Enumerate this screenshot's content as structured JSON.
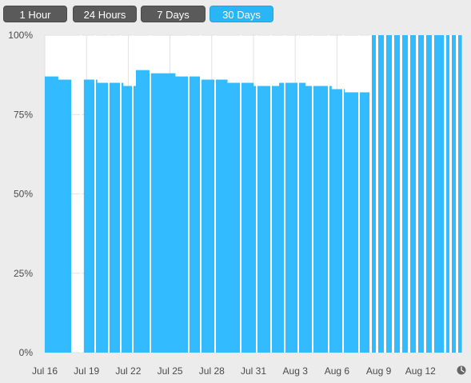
{
  "tabs": [
    {
      "label": "1 Hour",
      "selected": false
    },
    {
      "label": "24 Hours",
      "selected": false
    },
    {
      "label": "7 Days",
      "selected": false
    },
    {
      "label": "30 Days",
      "selected": true
    }
  ],
  "clock_icon": "clock-icon",
  "colors": {
    "bar": "#33bbff",
    "tab_selected": "#2ab5f6",
    "tab": "#5a5a5a",
    "grid": "#e2e2e2"
  },
  "chart_data": {
    "type": "area",
    "title": "",
    "xlabel": "",
    "ylabel": "",
    "ylim": [
      0,
      100
    ],
    "y_ticks": [
      "0%",
      "25%",
      "50%",
      "75%",
      "100%"
    ],
    "x_ticks": [
      "Jul 16",
      "Jul 19",
      "Jul 22",
      "Jul 25",
      "Jul 28",
      "Jul 31",
      "Aug 3",
      "Aug 6",
      "Aug 9",
      "Aug 12"
    ],
    "grid": true,
    "series": [
      {
        "values": [
          {
            "x": "Jul 16",
            "y": 87
          },
          {
            "x": "Jul 17",
            "y": 86
          },
          {
            "x": "Jul 18",
            "y": 0
          },
          {
            "x": "Jul 19",
            "y": 86
          },
          {
            "x": "Jul 20",
            "y": 85
          },
          {
            "x": "Jul 21",
            "y": 85
          },
          {
            "x": "Jul 22",
            "y": 84
          },
          {
            "x": "Jul 22.5",
            "y": 89
          },
          {
            "x": "Jul 23",
            "y": 88
          },
          {
            "x": "Jul 24",
            "y": 88
          },
          {
            "x": "Jul 25",
            "y": 87
          },
          {
            "x": "Jul 26",
            "y": 87
          },
          {
            "x": "Jul 27",
            "y": 86
          },
          {
            "x": "Jul 28",
            "y": 86
          },
          {
            "x": "Jul 29",
            "y": 85
          },
          {
            "x": "Jul 30",
            "y": 85
          },
          {
            "x": "Jul 31",
            "y": 84
          },
          {
            "x": "Aug 1",
            "y": 84
          },
          {
            "x": "Aug 2",
            "y": 85
          },
          {
            "x": "Aug 3",
            "y": 85
          },
          {
            "x": "Aug 4",
            "y": 84
          },
          {
            "x": "Aug 5",
            "y": 84
          },
          {
            "x": "Aug 6",
            "y": 83
          },
          {
            "x": "Aug 7",
            "y": 82
          },
          {
            "x": "Aug 8",
            "y": 82
          },
          {
            "x": "Aug 8.5",
            "y": 100
          },
          {
            "x": "Aug 9",
            "y": 100
          },
          {
            "x": "Aug 10",
            "y": 100
          },
          {
            "x": "Aug 11",
            "y": 100
          },
          {
            "x": "Aug 12",
            "y": 100
          },
          {
            "x": "Aug 13",
            "y": 100
          },
          {
            "x": "Aug 14",
            "y": 100
          }
        ]
      }
    ]
  }
}
